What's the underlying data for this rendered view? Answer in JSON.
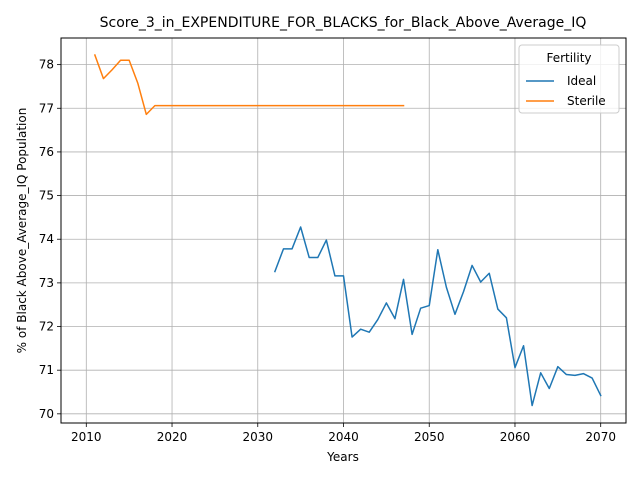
{
  "chart_data": {
    "type": "line",
    "title": "Score_3_in_EXPENDITURE_FOR_BLACKS_for_Black_Above_Average_IQ",
    "xlabel": "Years",
    "ylabel": "% of Black Above_Average_IQ Population",
    "xlim": [
      2007.05,
      2072.95
    ],
    "ylim": [
      69.79,
      78.61
    ],
    "xticks": [
      2010,
      2020,
      2030,
      2040,
      2050,
      2060,
      2070
    ],
    "yticks": [
      70,
      71,
      72,
      73,
      74,
      75,
      76,
      77,
      78
    ],
    "grid": true,
    "legend": {
      "title": "Fertility",
      "placement": "top-right"
    },
    "series": [
      {
        "name": "Ideal",
        "color": "#1f77b4",
        "x": [
          2032,
          2033,
          2034,
          2035,
          2036,
          2037,
          2038,
          2039,
          2040,
          2041,
          2042,
          2043,
          2044,
          2045,
          2046,
          2047,
          2048,
          2049,
          2050,
          2051,
          2052,
          2053,
          2054,
          2055,
          2056,
          2057,
          2058,
          2059,
          2060,
          2061,
          2062,
          2063,
          2064,
          2065,
          2066,
          2067,
          2068,
          2069,
          2070
        ],
        "y": [
          73.26,
          73.78,
          73.78,
          74.28,
          73.58,
          73.58,
          73.98,
          73.16,
          73.16,
          71.76,
          71.94,
          71.87,
          72.16,
          72.54,
          72.18,
          73.08,
          71.82,
          72.42,
          72.48,
          73.76,
          72.9,
          72.28,
          72.8,
          73.4,
          73.02,
          73.22,
          72.4,
          72.2,
          71.06,
          71.56,
          70.19,
          70.94,
          70.58,
          71.08,
          70.9,
          70.88,
          70.92,
          70.82,
          70.42
        ]
      },
      {
        "name": "Sterile",
        "color": "#ff7f0e",
        "x": [
          2011,
          2012,
          2013,
          2014,
          2015,
          2016,
          2017,
          2018,
          2019,
          2020,
          2021,
          2022,
          2023,
          2024,
          2025,
          2026,
          2027,
          2028,
          2029,
          2030,
          2031,
          2032,
          2033,
          2034,
          2035,
          2036,
          2037,
          2038,
          2039,
          2040,
          2041,
          2042,
          2043,
          2044,
          2045,
          2046,
          2047
        ],
        "y": [
          78.22,
          77.68,
          77.88,
          78.1,
          78.1,
          77.58,
          76.86,
          77.06,
          77.06,
          77.06,
          77.06,
          77.06,
          77.06,
          77.06,
          77.06,
          77.06,
          77.06,
          77.06,
          77.06,
          77.06,
          77.06,
          77.06,
          77.06,
          77.06,
          77.06,
          77.06,
          77.06,
          77.06,
          77.06,
          77.06,
          77.06,
          77.06,
          77.06,
          77.06,
          77.06,
          77.06,
          77.06
        ]
      }
    ]
  }
}
